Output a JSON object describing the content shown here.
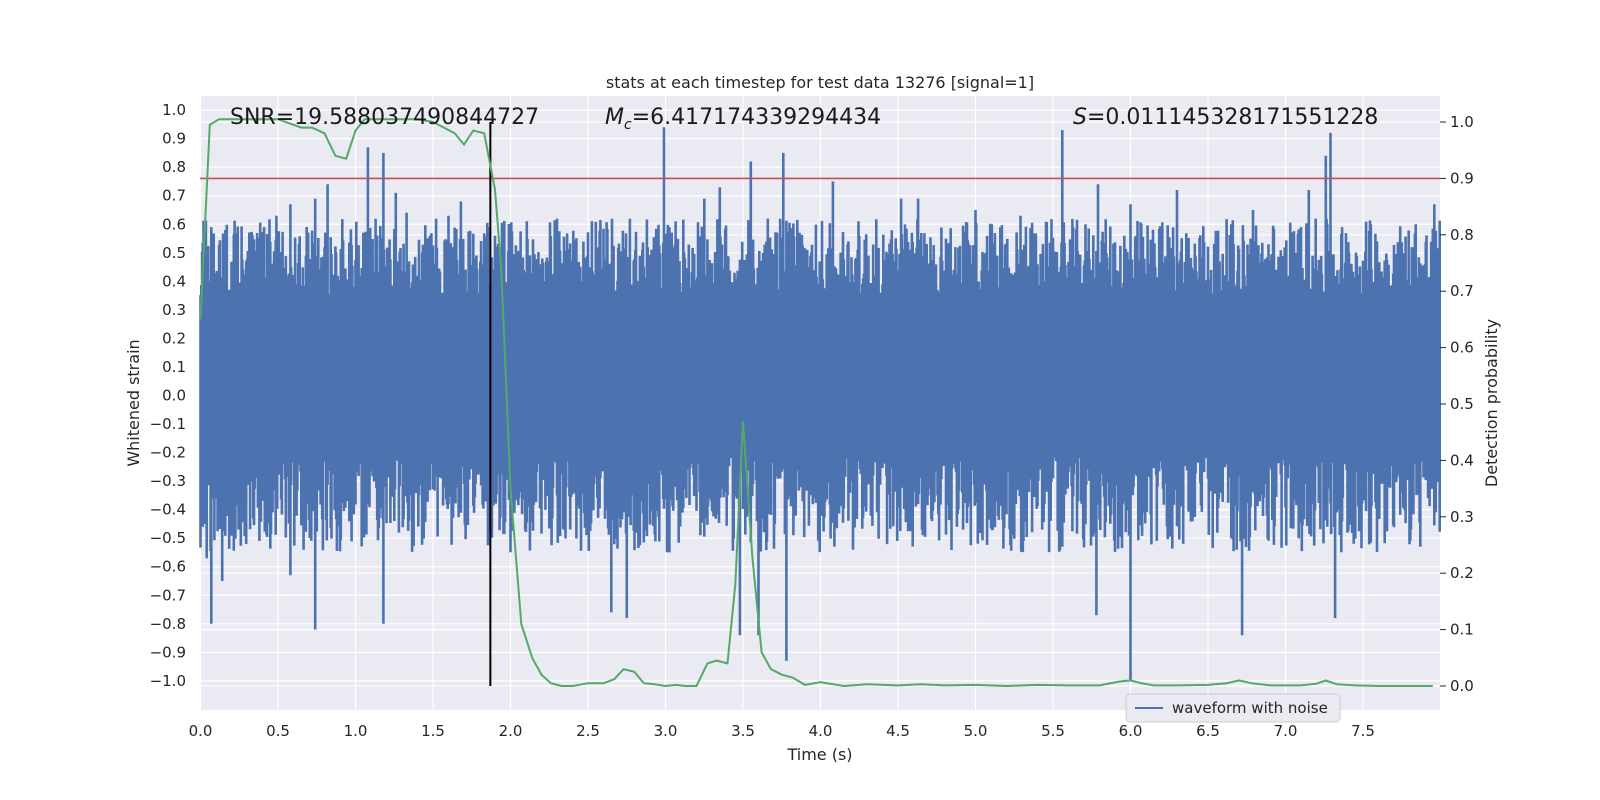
{
  "chart_data": {
    "type": "line",
    "title": "stats at each timestep for test data 13276 [signal=1]",
    "xlabel": "Time (s)",
    "ylabel_left": "Whitened strain",
    "ylabel_right": "Detection probability",
    "xlim": [
      0.0,
      8.0
    ],
    "ylim_left": [
      -1.09,
      1.05
    ],
    "ylim_right": [
      -0.045,
      1.045
    ],
    "x_ticks": [
      0.0,
      0.5,
      1.0,
      1.5,
      2.0,
      2.5,
      3.0,
      3.5,
      4.0,
      4.5,
      5.0,
      5.5,
      6.0,
      6.5,
      7.0,
      7.5
    ],
    "x_tick_labels": [
      "0.0",
      "0.5",
      "1.0",
      "1.5",
      "2.0",
      "2.5",
      "3.0",
      "3.5",
      "4.0",
      "4.5",
      "5.0",
      "5.5",
      "6.0",
      "6.5",
      "7.0",
      "7.5"
    ],
    "y_left_ticks": [
      1.0,
      0.9,
      0.8,
      0.7,
      0.6,
      0.5,
      0.4,
      0.3,
      0.2,
      0.1,
      0.0,
      -0.1,
      -0.2,
      -0.3,
      -0.4,
      -0.5,
      -0.6,
      -0.7,
      -0.8,
      -0.9,
      -1.0
    ],
    "y_left_tick_labels": [
      "1.0",
      "0.9",
      "0.8",
      "0.7",
      "0.6",
      "0.5",
      "0.4",
      "0.3",
      "0.2",
      "0.1",
      "0.0",
      "−0.1",
      "−0.2",
      "−0.3",
      "−0.4",
      "−0.5",
      "−0.6",
      "−0.7",
      "−0.8",
      "−0.9",
      "−1.0"
    ],
    "y_right_ticks": [
      1.0,
      0.9,
      0.8,
      0.7,
      0.6,
      0.5,
      0.4,
      0.3,
      0.2,
      0.1,
      0.0
    ],
    "y_right_tick_labels": [
      "1.0",
      "0.9",
      "0.8",
      "0.7",
      "0.6",
      "0.5",
      "0.4",
      "0.3",
      "0.2",
      "0.1",
      "0.0"
    ],
    "grid": true,
    "legend": {
      "entries": [
        "waveform with noise"
      ],
      "placement": "lower-right"
    },
    "annotations": {
      "snr": "SNR=19.588037490844727",
      "mc_symbol": "M",
      "mc_sub": "c",
      "mc_value": "=6.417174339294434",
      "s_symbol": "S",
      "s_value": "=0.011145328171551228"
    },
    "threshold": {
      "value": 0.9,
      "axis": "right",
      "color": "#c44e52"
    },
    "event_marker": {
      "x": 1.87,
      "color": "#000000"
    },
    "waveform": {
      "name": "waveform with noise",
      "color": "#4c72b0",
      "sample_rate_hz": 200,
      "core_band": [
        -0.21,
        0.35
      ],
      "typical_max": 0.62,
      "typical_min": -0.55,
      "spikes": [
        [
          0.04,
          -0.57
        ],
        [
          0.07,
          0.59
        ],
        [
          0.07,
          -0.8
        ],
        [
          0.16,
          0.58
        ],
        [
          0.14,
          -0.65
        ],
        [
          0.49,
          0.63
        ],
        [
          0.58,
          0.67
        ],
        [
          0.58,
          -0.63
        ],
        [
          0.74,
          0.69
        ],
        [
          0.74,
          -0.82
        ],
        [
          0.82,
          0.74
        ],
        [
          1.05,
          0.57
        ],
        [
          1.08,
          0.87
        ],
        [
          1.18,
          0.85
        ],
        [
          1.18,
          -0.8
        ],
        [
          1.26,
          0.71
        ],
        [
          1.33,
          0.64
        ],
        [
          1.6,
          0.63
        ],
        [
          1.68,
          0.68
        ],
        [
          2.0,
          0.56
        ],
        [
          2.3,
          0.62
        ],
        [
          2.65,
          -0.76
        ],
        [
          2.75,
          -0.78
        ],
        [
          2.99,
          0.94
        ],
        [
          3.25,
          0.69
        ],
        [
          3.35,
          0.73
        ],
        [
          3.48,
          -0.84
        ],
        [
          3.55,
          0.82
        ],
        [
          3.6,
          -0.84
        ],
        [
          3.76,
          0.85
        ],
        [
          3.78,
          -0.93
        ],
        [
          4.08,
          0.75
        ],
        [
          4.52,
          0.69
        ],
        [
          4.63,
          0.69
        ],
        [
          5.0,
          0.65
        ],
        [
          5.29,
          0.63
        ],
        [
          5.56,
          0.93
        ],
        [
          5.79,
          0.74
        ],
        [
          5.78,
          -0.77
        ],
        [
          6.0,
          -1.0
        ],
        [
          6.0,
          0.67
        ],
        [
          6.3,
          0.72
        ],
        [
          6.65,
          0.6
        ],
        [
          6.72,
          -0.84
        ],
        [
          6.79,
          0.65
        ],
        [
          7.15,
          0.72
        ],
        [
          7.26,
          0.84
        ],
        [
          7.29,
          0.92
        ],
        [
          7.32,
          -0.78
        ],
        [
          7.55,
          0.6
        ],
        [
          7.84,
          0.6
        ],
        [
          7.96,
          0.67
        ]
      ]
    },
    "detection_probability": {
      "color": "#55a868",
      "x": [
        0.0,
        0.06,
        0.12,
        0.2,
        0.3,
        0.4,
        0.5,
        0.6,
        0.65,
        0.72,
        0.8,
        0.87,
        0.94,
        1.0,
        1.06,
        1.13,
        1.2,
        1.3,
        1.4,
        1.5,
        1.57,
        1.64,
        1.7,
        1.76,
        1.83,
        1.9,
        1.94,
        2.0,
        2.07,
        2.14,
        2.2,
        2.26,
        2.33,
        2.4,
        2.5,
        2.6,
        2.67,
        2.73,
        2.8,
        2.86,
        2.93,
        3.0,
        3.07,
        3.13,
        3.2,
        3.27,
        3.33,
        3.4,
        3.45,
        3.5,
        3.56,
        3.62,
        3.68,
        3.75,
        3.82,
        3.9,
        4.0,
        4.15,
        4.3,
        4.5,
        4.65,
        4.8,
        5.0,
        5.2,
        5.4,
        5.6,
        5.8,
        5.93,
        6.0,
        6.07,
        6.15,
        6.3,
        6.5,
        6.62,
        6.7,
        6.78,
        6.9,
        7.1,
        7.2,
        7.26,
        7.33,
        7.45,
        7.6,
        7.8,
        7.95
      ],
      "y": [
        0.65,
        0.995,
        1.005,
        1.005,
        1.005,
        1.005,
        1.005,
        0.995,
        0.99,
        0.99,
        0.98,
        0.94,
        0.935,
        0.985,
        1.005,
        1.005,
        1.005,
        1.005,
        1.005,
        1.0,
        0.99,
        0.98,
        0.96,
        0.985,
        0.98,
        0.88,
        0.74,
        0.35,
        0.11,
        0.05,
        0.02,
        0.005,
        0.0,
        0.0,
        0.005,
        0.005,
        0.012,
        0.03,
        0.025,
        0.005,
        0.003,
        0.0,
        0.002,
        0.0,
        0.0,
        0.04,
        0.045,
        0.04,
        0.18,
        0.47,
        0.23,
        0.06,
        0.03,
        0.02,
        0.015,
        0.002,
        0.007,
        0.0,
        0.003,
        0.001,
        0.003,
        0.001,
        0.002,
        0.0,
        0.002,
        0.001,
        0.001,
        0.008,
        0.01,
        0.005,
        0.001,
        0.001,
        0.002,
        0.005,
        0.01,
        0.005,
        0.001,
        0.001,
        0.004,
        0.01,
        0.003,
        0.001,
        0.0,
        0.0,
        0.0
      ]
    }
  }
}
